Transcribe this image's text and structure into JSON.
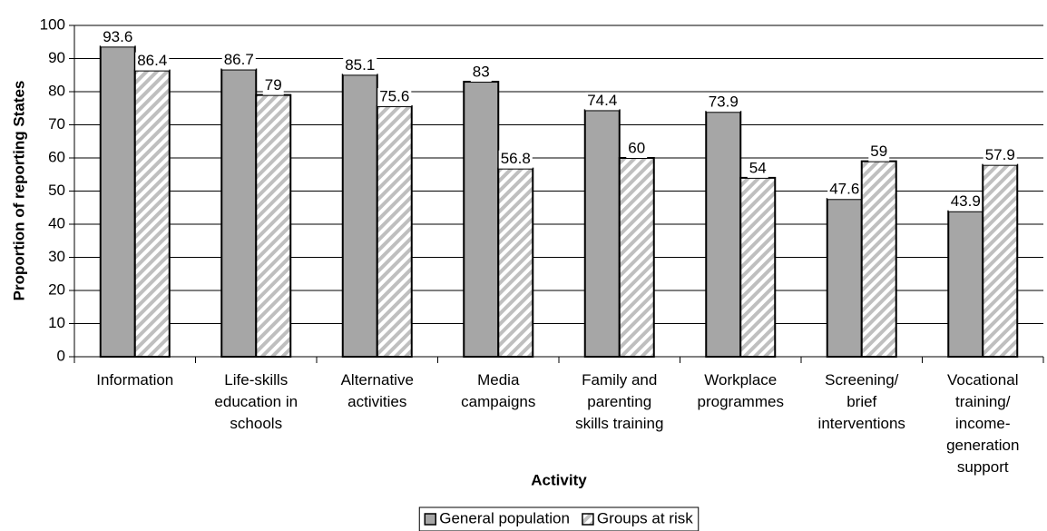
{
  "chart_data": {
    "type": "bar",
    "x_label": "Activity",
    "y_label": "Proportion of reporting States",
    "categories": [
      "Information",
      "Life-skills\neducation in\nschools",
      "Alternative\nactivities",
      "Media\ncampaigns",
      "Family and\nparenting\nskills training",
      "Workplace\nprogrammes",
      "Screening/\nbrief\ninterventions",
      "Vocational\ntraining/\nincome-\ngeneration\nsupport"
    ],
    "series": [
      {
        "name": "General population",
        "color": "#a6a6a6",
        "pattern": "solid",
        "values": [
          93.6,
          86.7,
          85.1,
          83,
          74.4,
          73.9,
          47.6,
          43.9
        ]
      },
      {
        "name": "Groups at risk",
        "color": "#bfbfbf",
        "pattern": "hatch",
        "values": [
          86.4,
          79,
          75.6,
          56.8,
          60,
          54,
          59,
          57.9
        ]
      }
    ],
    "ylim": [
      0,
      100
    ],
    "yticks": [
      0,
      10,
      20,
      30,
      40,
      50,
      60,
      70,
      80,
      90,
      100
    ],
    "grid": true,
    "legend": "bottom"
  }
}
